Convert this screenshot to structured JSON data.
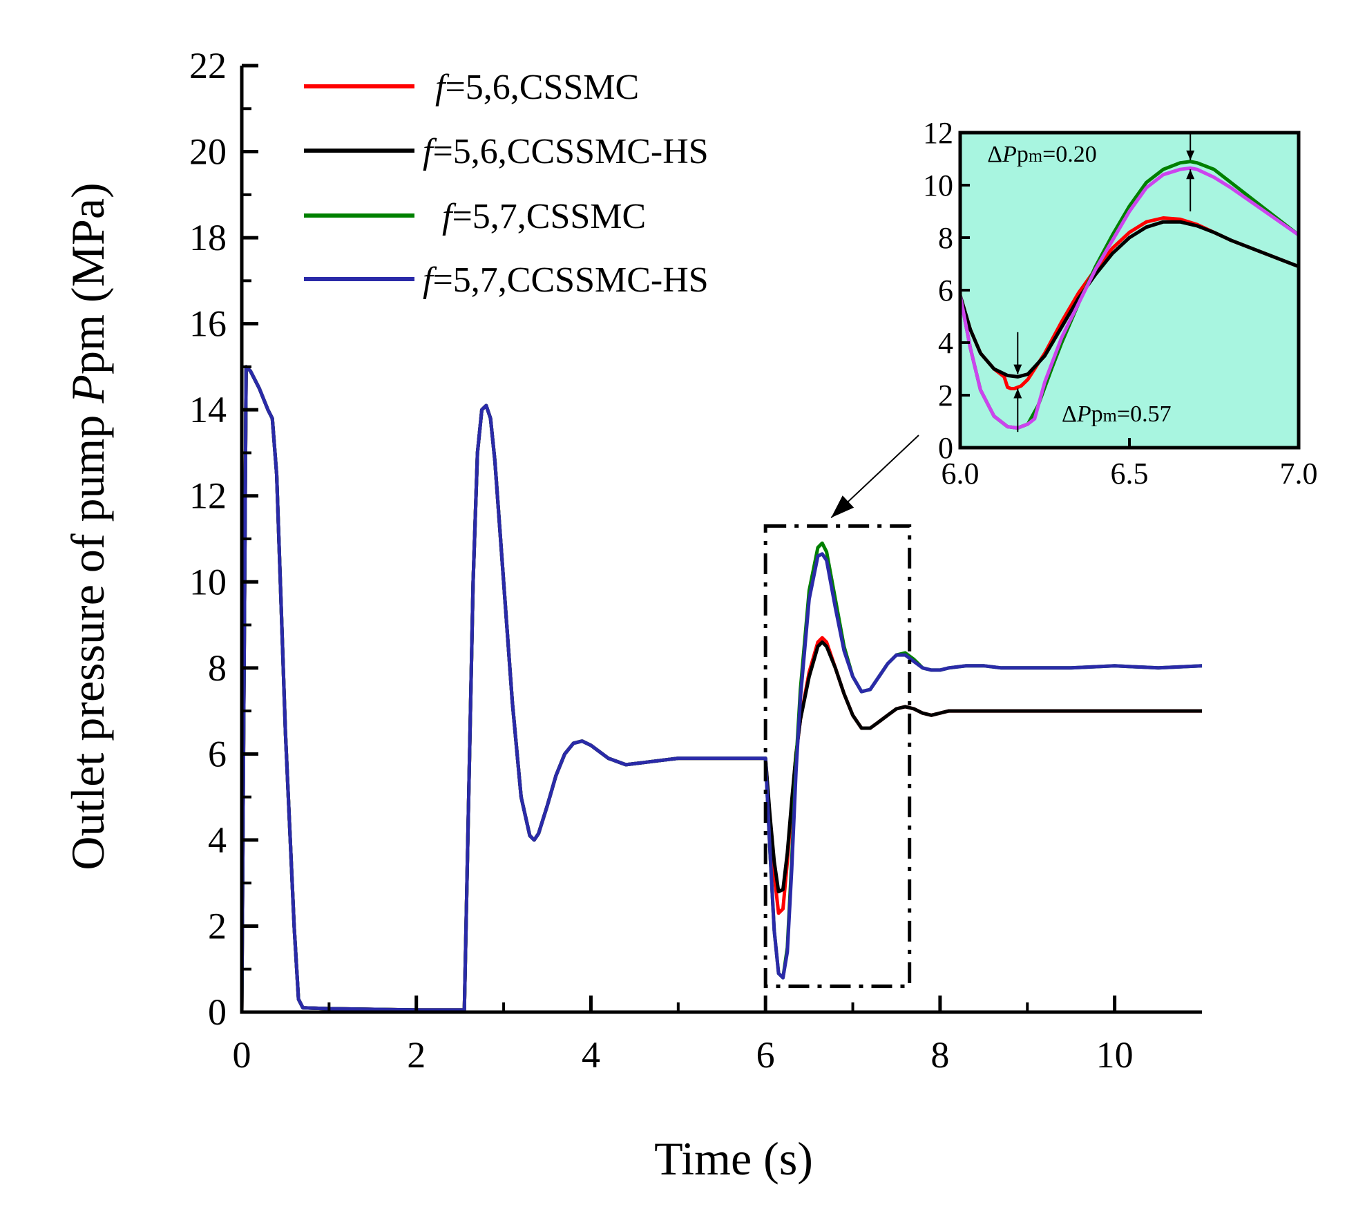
{
  "chart_data": [
    {
      "type": "line",
      "title": "",
      "xlabel": "Time (s)",
      "ylabel": {
        "prefix": "Outlet pressure of pump ",
        "var": "P",
        "sub": "pm",
        "unit": " (MPa)"
      },
      "xlim": [
        0,
        11
      ],
      "ylim": [
        0,
        22
      ],
      "x_ticks": [
        0,
        2,
        4,
        6,
        8,
        10
      ],
      "y_ticks": [
        0,
        2,
        4,
        6,
        8,
        10,
        12,
        14,
        16,
        18,
        20,
        22
      ],
      "grid": false,
      "legend_position": "top-left",
      "series": [
        {
          "name": "f=5,6,CSSMC",
          "name_var": "f",
          "name_rest": "=5,6,CSSMC",
          "color": "#ff0000",
          "x": [
            0,
            0.05,
            0.1,
            0.2,
            0.3,
            0.35,
            0.4,
            0.45,
            0.5,
            0.6,
            0.65,
            0.7,
            1.0,
            2.0,
            2.55,
            2.6,
            2.65,
            2.7,
            2.75,
            2.8,
            2.85,
            2.9,
            3.0,
            3.1,
            3.2,
            3.3,
            3.35,
            3.4,
            3.5,
            3.6,
            3.7,
            3.8,
            3.9,
            4.0,
            4.2,
            4.4,
            4.6,
            4.8,
            5.0,
            5.5,
            6.0,
            6.05,
            6.1,
            6.15,
            6.2,
            6.25,
            6.3,
            6.35,
            6.4,
            6.5,
            6.6,
            6.65,
            6.7,
            6.8,
            6.9,
            7.0,
            7.1,
            7.2,
            7.3,
            7.4,
            7.5,
            7.6,
            7.7,
            7.8,
            7.9,
            8.0,
            8.1,
            8.3,
            8.5,
            8.7,
            9.0,
            9.5,
            10.0,
            10.5,
            11.0
          ],
          "y": [
            0,
            15,
            14.9,
            14.5,
            14.0,
            13.8,
            12.5,
            9.5,
            6.5,
            2.0,
            0.3,
            0.1,
            0.08,
            0.05,
            0.05,
            5.0,
            10.0,
            13.0,
            14.0,
            14.1,
            13.8,
            12.8,
            10.0,
            7.2,
            5.0,
            4.1,
            4.0,
            4.15,
            4.8,
            5.5,
            6.0,
            6.25,
            6.3,
            6.2,
            5.9,
            5.75,
            5.8,
            5.85,
            5.9,
            5.9,
            5.9,
            4.5,
            3.2,
            2.3,
            2.4,
            3.5,
            4.8,
            6.0,
            6.8,
            7.9,
            8.6,
            8.7,
            8.6,
            8.0,
            7.4,
            6.9,
            6.6,
            6.6,
            6.75,
            6.9,
            7.05,
            7.1,
            7.05,
            6.95,
            6.9,
            6.95,
            7.0,
            7.0,
            7.0,
            7.0,
            7.0,
            7.0,
            7.0,
            7.0,
            7.0
          ]
        },
        {
          "name": "f=5,6,CCSSMC-HS",
          "name_var": "f",
          "name_rest": "=5,6,CCSSMC-HS",
          "color": "#000000",
          "x": [
            0,
            0.05,
            0.1,
            0.2,
            0.3,
            0.35,
            0.4,
            0.45,
            0.5,
            0.6,
            0.65,
            0.7,
            1.0,
            2.0,
            2.55,
            2.6,
            2.65,
            2.7,
            2.75,
            2.8,
            2.85,
            2.9,
            3.0,
            3.1,
            3.2,
            3.3,
            3.35,
            3.4,
            3.5,
            3.6,
            3.7,
            3.8,
            3.9,
            4.0,
            4.2,
            4.4,
            4.6,
            4.8,
            5.0,
            5.5,
            6.0,
            6.05,
            6.1,
            6.15,
            6.2,
            6.25,
            6.3,
            6.35,
            6.4,
            6.5,
            6.6,
            6.65,
            6.7,
            6.8,
            6.9,
            7.0,
            7.1,
            7.2,
            7.3,
            7.4,
            7.5,
            7.6,
            7.7,
            7.8,
            7.9,
            8.0,
            8.1,
            8.3,
            8.5,
            8.7,
            9.0,
            9.5,
            10.0,
            10.5,
            11.0
          ],
          "y": [
            0,
            15,
            14.9,
            14.5,
            14.0,
            13.8,
            12.5,
            9.5,
            6.5,
            2.0,
            0.3,
            0.1,
            0.08,
            0.05,
            0.05,
            5.0,
            10.0,
            13.0,
            14.0,
            14.1,
            13.8,
            12.8,
            10.0,
            7.2,
            5.0,
            4.1,
            4.0,
            4.15,
            4.8,
            5.5,
            6.0,
            6.25,
            6.3,
            6.2,
            5.9,
            5.75,
            5.8,
            5.85,
            5.9,
            5.9,
            5.9,
            4.6,
            3.5,
            2.8,
            2.85,
            3.7,
            4.9,
            6.0,
            6.8,
            7.8,
            8.5,
            8.6,
            8.5,
            8.0,
            7.4,
            6.9,
            6.6,
            6.6,
            6.75,
            6.9,
            7.05,
            7.1,
            7.05,
            6.95,
            6.9,
            6.95,
            7.0,
            7.0,
            7.0,
            7.0,
            7.0,
            7.0,
            7.0,
            7.0,
            7.0
          ]
        },
        {
          "name": "f=5,7,CSSMC",
          "name_var": "f",
          "name_rest": "=5,7,CSSMC",
          "color": "#008000",
          "x": [
            0,
            0.05,
            0.1,
            0.2,
            0.3,
            0.35,
            0.4,
            0.45,
            0.5,
            0.6,
            0.65,
            0.7,
            1.0,
            2.0,
            2.55,
            2.6,
            2.65,
            2.7,
            2.75,
            2.8,
            2.85,
            2.9,
            3.0,
            3.1,
            3.2,
            3.3,
            3.35,
            3.4,
            3.5,
            3.6,
            3.7,
            3.8,
            3.9,
            4.0,
            4.2,
            4.4,
            4.6,
            4.8,
            5.0,
            5.5,
            6.0,
            6.05,
            6.1,
            6.15,
            6.2,
            6.25,
            6.3,
            6.35,
            6.4,
            6.5,
            6.6,
            6.65,
            6.7,
            6.8,
            6.9,
            7.0,
            7.1,
            7.2,
            7.3,
            7.4,
            7.5,
            7.6,
            7.7,
            7.8,
            7.9,
            8.0,
            8.1,
            8.3,
            8.5,
            8.7,
            9.0,
            9.5,
            10.0,
            10.5,
            11.0
          ],
          "y": [
            0,
            15,
            14.9,
            14.5,
            14.0,
            13.8,
            12.5,
            9.5,
            6.5,
            2.0,
            0.3,
            0.1,
            0.08,
            0.05,
            0.05,
            5.0,
            10.0,
            13.0,
            14.0,
            14.1,
            13.8,
            12.8,
            10.0,
            7.2,
            5.0,
            4.1,
            4.0,
            4.15,
            4.8,
            5.5,
            6.0,
            6.25,
            6.3,
            6.2,
            5.9,
            5.75,
            5.8,
            5.85,
            5.9,
            5.9,
            5.9,
            3.8,
            1.9,
            0.9,
            0.8,
            1.5,
            3.5,
            5.8,
            7.5,
            9.8,
            10.8,
            10.9,
            10.7,
            9.6,
            8.5,
            7.8,
            7.45,
            7.5,
            7.8,
            8.1,
            8.3,
            8.35,
            8.2,
            8.0,
            7.95,
            7.95,
            8.0,
            8.05,
            8.05,
            8.0,
            8.0,
            8.0,
            8.05,
            8.0,
            8.05
          ]
        },
        {
          "name": "f=5,7,CCSSMC-HS",
          "name_var": "f",
          "name_rest": "=5,7,CCSSMC-HS",
          "color": "#2a2aa8",
          "x": [
            0,
            0.05,
            0.1,
            0.2,
            0.3,
            0.35,
            0.4,
            0.45,
            0.5,
            0.6,
            0.65,
            0.7,
            1.0,
            2.0,
            2.55,
            2.6,
            2.65,
            2.7,
            2.75,
            2.8,
            2.85,
            2.9,
            3.0,
            3.1,
            3.2,
            3.3,
            3.35,
            3.4,
            3.5,
            3.6,
            3.7,
            3.8,
            3.9,
            4.0,
            4.2,
            4.4,
            4.6,
            4.8,
            5.0,
            5.5,
            6.0,
            6.05,
            6.1,
            6.15,
            6.2,
            6.25,
            6.3,
            6.35,
            6.4,
            6.5,
            6.6,
            6.65,
            6.7,
            6.8,
            6.9,
            7.0,
            7.1,
            7.2,
            7.3,
            7.4,
            7.5,
            7.6,
            7.7,
            7.8,
            7.9,
            8.0,
            8.1,
            8.3,
            8.5,
            8.7,
            9.0,
            9.5,
            10.0,
            10.5,
            11.0
          ],
          "y": [
            0,
            15,
            14.9,
            14.5,
            14.0,
            13.8,
            12.5,
            9.5,
            6.5,
            2.0,
            0.3,
            0.1,
            0.08,
            0.05,
            0.05,
            5.0,
            10.0,
            13.0,
            14.0,
            14.1,
            13.8,
            12.8,
            10.0,
            7.2,
            5.0,
            4.1,
            4.0,
            4.15,
            4.8,
            5.5,
            6.0,
            6.25,
            6.3,
            6.2,
            5.9,
            5.75,
            5.8,
            5.85,
            5.9,
            5.9,
            5.9,
            3.8,
            1.9,
            0.9,
            0.8,
            1.4,
            3.3,
            5.6,
            7.3,
            9.6,
            10.6,
            10.65,
            10.5,
            9.4,
            8.4,
            7.8,
            7.45,
            7.5,
            7.8,
            8.1,
            8.3,
            8.3,
            8.15,
            8.0,
            7.95,
            7.95,
            8.0,
            8.05,
            8.05,
            8.0,
            8.0,
            8.0,
            8.05,
            8.0,
            8.05
          ]
        }
      ],
      "zoom_box": {
        "x": [
          6.0,
          7.65
        ],
        "y": [
          0.6,
          11.3
        ]
      }
    },
    {
      "type": "line",
      "title": "",
      "xlabel": "",
      "ylabel": "",
      "xlim": [
        6.0,
        7.0
      ],
      "ylim": [
        0,
        12
      ],
      "x_ticks": [
        "6.0",
        "6.5",
        "7.0"
      ],
      "y_ticks": [
        0,
        2,
        4,
        6,
        8,
        10,
        12
      ],
      "background": "#a8f5e0",
      "grid": false,
      "series": [
        {
          "color": "#ff0000",
          "x": [
            6.0,
            6.03,
            6.06,
            6.1,
            6.13,
            6.14,
            6.15,
            6.16,
            6.18,
            6.2,
            6.25,
            6.3,
            6.35,
            6.4,
            6.45,
            6.5,
            6.55,
            6.6,
            6.65,
            6.7,
            6.75,
            6.8,
            6.9,
            7.0
          ],
          "y": [
            5.8,
            4.5,
            3.6,
            3.0,
            2.7,
            2.3,
            2.25,
            2.25,
            2.35,
            2.6,
            3.6,
            4.8,
            5.9,
            6.8,
            7.6,
            8.2,
            8.6,
            8.75,
            8.7,
            8.5,
            8.2,
            7.9,
            7.4,
            6.9
          ]
        },
        {
          "color": "#000000",
          "x": [
            6.0,
            6.03,
            6.06,
            6.1,
            6.14,
            6.17,
            6.2,
            6.25,
            6.3,
            6.35,
            6.4,
            6.45,
            6.5,
            6.55,
            6.6,
            6.65,
            6.7,
            6.75,
            6.8,
            6.9,
            7.0
          ],
          "y": [
            5.8,
            4.5,
            3.6,
            3.0,
            2.75,
            2.7,
            2.8,
            3.5,
            4.6,
            5.7,
            6.6,
            7.4,
            8.0,
            8.4,
            8.6,
            8.6,
            8.45,
            8.2,
            7.9,
            7.4,
            6.9
          ]
        },
        {
          "color": "#008000",
          "x": [
            6.0,
            6.03,
            6.06,
            6.1,
            6.14,
            6.17,
            6.2,
            6.23,
            6.27,
            6.3,
            6.35,
            6.4,
            6.45,
            6.5,
            6.55,
            6.6,
            6.65,
            6.68,
            6.7,
            6.75,
            6.8,
            6.9,
            7.0
          ],
          "y": [
            5.8,
            3.8,
            2.2,
            1.2,
            0.8,
            0.75,
            0.9,
            1.6,
            3.0,
            4.0,
            5.5,
            6.9,
            8.1,
            9.2,
            10.1,
            10.6,
            10.85,
            10.9,
            10.85,
            10.6,
            10.1,
            9.1,
            8.1
          ]
        },
        {
          "color": "#cc44ee",
          "x": [
            6.0,
            6.03,
            6.06,
            6.1,
            6.14,
            6.17,
            6.2,
            6.22,
            6.25,
            6.3,
            6.35,
            6.4,
            6.45,
            6.5,
            6.55,
            6.6,
            6.65,
            6.68,
            6.7,
            6.75,
            6.8,
            6.9,
            7.0
          ],
          "y": [
            5.8,
            3.8,
            2.2,
            1.2,
            0.8,
            0.75,
            0.9,
            1.1,
            2.5,
            4.2,
            5.5,
            6.8,
            7.9,
            9.0,
            9.9,
            10.4,
            10.6,
            10.65,
            10.6,
            10.3,
            9.9,
            9.0,
            8.1
          ]
        }
      ],
      "annotations": [
        {
          "id": "top",
          "delta": "Δ",
          "var": "P",
          "rest1": "p",
          "sub": "m",
          "rest2": "=0.20",
          "x": 6.08,
          "y": 10.9,
          "marker_x": 6.68
        },
        {
          "id": "bottom",
          "delta": "Δ",
          "var": "P",
          "rest1": "p",
          "sub": "m",
          "rest2": "=0.57",
          "x": 6.3,
          "y": 1.0,
          "marker_x": 6.17
        }
      ]
    }
  ]
}
